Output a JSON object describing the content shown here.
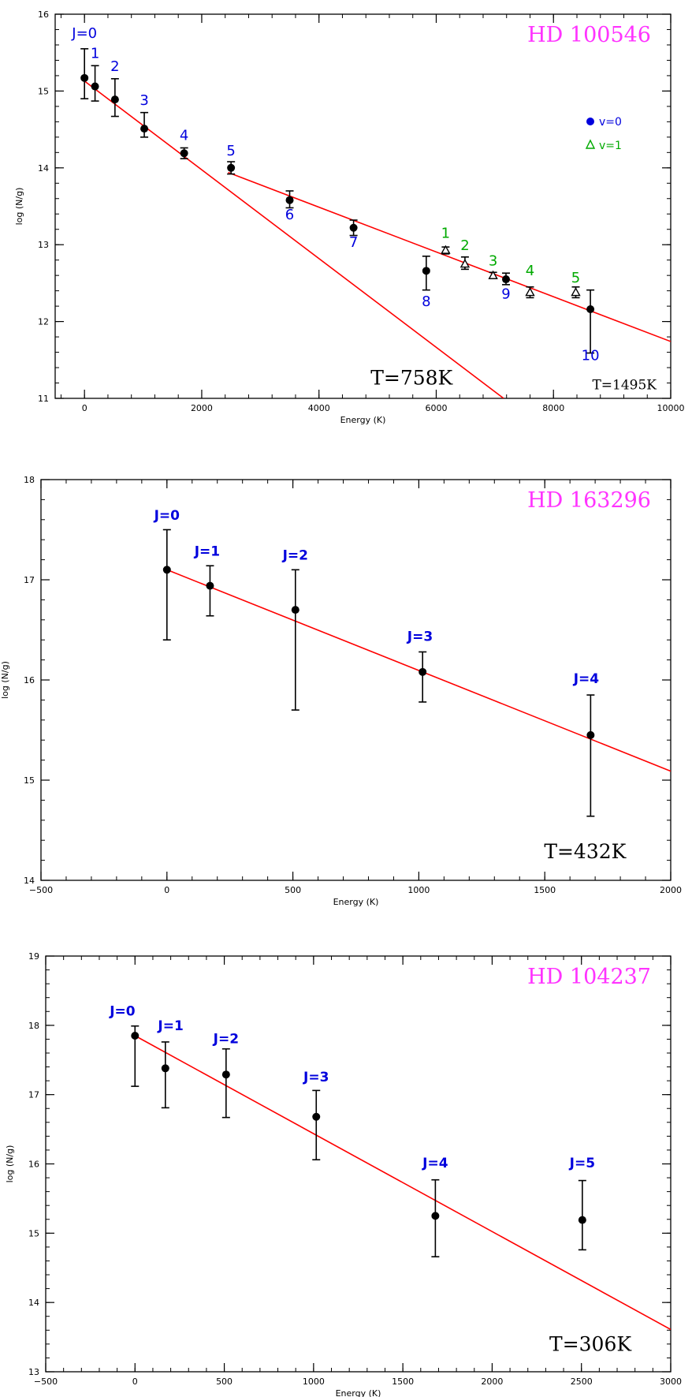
{
  "colors": {
    "fit_line": "#ff0000",
    "title": "#ff33ff",
    "v0_label": "#0000dd",
    "v1_label": "#00aa00",
    "marker": "#000000"
  },
  "chart_data": [
    {
      "type": "scatter",
      "title": "HD 100546",
      "xlabel": "Energy (K)",
      "ylabel": "log (N/g)",
      "xlim": [
        -500,
        10000
      ],
      "ylim": [
        11,
        16
      ],
      "xticks": [
        0,
        2000,
        4000,
        6000,
        8000,
        10000
      ],
      "yticks": [
        11,
        12,
        13,
        14,
        15,
        16
      ],
      "xtick_labels": [
        "0",
        "2000",
        "4000",
        "6000",
        "8000",
        "10000"
      ],
      "ytick_labels": [
        "11",
        "12",
        "13",
        "14",
        "15",
        "16"
      ],
      "x_minor_step": 400,
      "y_minor_step": 0.2,
      "grid": false,
      "legend_position": "right",
      "legend": [
        {
          "marker": "circle",
          "label": "v=0",
          "color": "#0000dd"
        },
        {
          "marker": "triangle",
          "label": "v=1",
          "color": "#00aa00"
        }
      ],
      "series": [
        {
          "name": "v=0",
          "marker": "circle",
          "label_color": "#0000dd",
          "points": [
            {
              "x": 0,
              "y": 15.17,
              "ylo": 14.9,
              "yhi": 15.55,
              "label": "J=0",
              "lx": 0,
              "ly": 15.69
            },
            {
              "x": 180,
              "y": 15.06,
              "ylo": 14.87,
              "yhi": 15.33,
              "label": "1",
              "lx": 180,
              "ly": 15.43
            },
            {
              "x": 520,
              "y": 14.89,
              "ylo": 14.67,
              "yhi": 15.16,
              "label": "2",
              "lx": 520,
              "ly": 15.26
            },
            {
              "x": 1020,
              "y": 14.51,
              "ylo": 14.4,
              "yhi": 14.72,
              "label": "3",
              "lx": 1020,
              "ly": 14.82
            },
            {
              "x": 1700,
              "y": 14.19,
              "ylo": 14.12,
              "yhi": 14.26,
              "label": "4",
              "lx": 1700,
              "ly": 14.36
            },
            {
              "x": 2500,
              "y": 14.0,
              "ylo": 13.92,
              "yhi": 14.08,
              "label": "5",
              "lx": 2500,
              "ly": 14.16
            },
            {
              "x": 3500,
              "y": 13.58,
              "ylo": 13.48,
              "yhi": 13.7,
              "label": "6",
              "lx": 3500,
              "ly": 13.33
            },
            {
              "x": 4590,
              "y": 13.22,
              "ylo": 13.12,
              "yhi": 13.32,
              "label": "7",
              "lx": 4590,
              "ly": 12.97
            },
            {
              "x": 5830,
              "y": 12.66,
              "ylo": 12.41,
              "yhi": 12.85,
              "label": "8",
              "lx": 5830,
              "ly": 12.2
            },
            {
              "x": 7190,
              "y": 12.55,
              "ylo": 12.48,
              "yhi": 12.63,
              "label": "9",
              "lx": 7190,
              "ly": 12.3
            },
            {
              "x": 8630,
              "y": 12.16,
              "ylo": 11.59,
              "yhi": 12.41,
              "label": "10",
              "lx": 8630,
              "ly": 11.5
            }
          ]
        },
        {
          "name": "v=1",
          "marker": "triangle",
          "label_color": "#00aa00",
          "points": [
            {
              "x": 6160,
              "y": 12.93,
              "ylo": 12.88,
              "yhi": 12.97,
              "label": "1",
              "lx": 6160,
              "ly": 13.09
            },
            {
              "x": 6490,
              "y": 12.75,
              "ylo": 12.68,
              "yhi": 12.84,
              "label": "2",
              "lx": 6490,
              "ly": 12.93
            },
            {
              "x": 6970,
              "y": 12.6,
              "ylo": 12.56,
              "yhi": 12.64,
              "label": "3",
              "lx": 6970,
              "ly": 12.73
            },
            {
              "x": 7600,
              "y": 12.38,
              "ylo": 12.31,
              "yhi": 12.45,
              "label": "4",
              "lx": 7600,
              "ly": 12.6
            },
            {
              "x": 8380,
              "y": 12.38,
              "ylo": 12.31,
              "yhi": 12.45,
              "label": "5",
              "lx": 8380,
              "ly": 12.51
            }
          ]
        }
      ],
      "fits": [
        {
          "x": [
            0,
            7150
          ],
          "y": [
            15.13,
            11.0
          ]
        },
        {
          "x": [
            2450,
            10000
          ],
          "y": [
            13.94,
            11.74
          ]
        }
      ],
      "annotations": [
        {
          "text": "T=758K",
          "x": 5580,
          "y": 11.18,
          "size": "large"
        },
        {
          "text": "T=1495K",
          "x": 9210,
          "y": 11.12,
          "size": "small"
        }
      ]
    },
    {
      "type": "scatter",
      "title": "HD 163296",
      "xlabel": "Energy (K)",
      "ylabel": "log (N/g)",
      "xlim": [
        -500,
        2000
      ],
      "ylim": [
        14,
        18
      ],
      "xticks": [
        -500,
        0,
        500,
        1000,
        1500,
        2000
      ],
      "yticks": [
        14,
        15,
        16,
        17,
        18
      ],
      "xtick_labels": [
        "−500",
        "0",
        "500",
        "1000",
        "1500",
        "2000"
      ],
      "ytick_labels": [
        "14",
        "15",
        "16",
        "17",
        "18"
      ],
      "x_minor_step": 100,
      "y_minor_step": 0.2,
      "grid": false,
      "legend": [],
      "series": [
        {
          "name": "",
          "marker": "circle",
          "label_color": "#0000dd",
          "bold_labels": true,
          "points": [
            {
              "x": 0,
              "y": 17.1,
              "ylo": 16.4,
              "yhi": 17.5,
              "label": "J=0",
              "lx": 0,
              "ly": 17.6
            },
            {
              "x": 171,
              "y": 16.94,
              "ylo": 16.64,
              "yhi": 17.14,
              "label": "J=1",
              "lx": 160,
              "ly": 17.24
            },
            {
              "x": 510,
              "y": 16.7,
              "ylo": 15.7,
              "yhi": 17.1,
              "label": "J=2",
              "lx": 510,
              "ly": 17.2
            },
            {
              "x": 1015,
              "y": 16.08,
              "ylo": 15.78,
              "yhi": 16.28,
              "label": "J=3",
              "lx": 1005,
              "ly": 16.39
            },
            {
              "x": 1682,
              "y": 15.45,
              "ylo": 14.64,
              "yhi": 15.85,
              "label": "J=4",
              "lx": 1665,
              "ly": 15.97
            }
          ]
        }
      ],
      "fits": [
        {
          "x": [
            0,
            2000
          ],
          "y": [
            17.1,
            15.09
          ]
        }
      ],
      "annotations": [
        {
          "text": "T=432K",
          "x": 1660,
          "y": 14.22,
          "size": "large"
        }
      ]
    },
    {
      "type": "scatter",
      "title": "HD 104237",
      "xlabel": "Energy (K)",
      "ylabel": "log (N/g)",
      "xlim": [
        -500,
        3000
      ],
      "ylim": [
        13,
        19
      ],
      "xticks": [
        -500,
        0,
        500,
        1000,
        1500,
        2000,
        2500,
        3000
      ],
      "yticks": [
        13,
        14,
        15,
        16,
        17,
        18,
        19
      ],
      "xtick_labels": [
        "−500",
        "0",
        "500",
        "1000",
        "1500",
        "2000",
        "2500",
        "3000"
      ],
      "ytick_labels": [
        "13",
        "14",
        "15",
        "16",
        "17",
        "18",
        "19"
      ],
      "x_minor_step": 100,
      "y_minor_step": 0.2,
      "grid": false,
      "legend": [],
      "series": [
        {
          "name": "",
          "marker": "circle",
          "label_color": "#0000dd",
          "bold_labels": true,
          "points": [
            {
              "x": 0,
              "y": 17.85,
              "ylo": 17.12,
              "yhi": 17.99,
              "label": "J=0",
              "lx": -70,
              "ly": 18.14
            },
            {
              "x": 170,
              "y": 17.38,
              "ylo": 16.81,
              "yhi": 17.76,
              "label": "J=1",
              "lx": 200,
              "ly": 17.93
            },
            {
              "x": 510,
              "y": 17.29,
              "ylo": 16.67,
              "yhi": 17.66,
              "label": "J=2",
              "lx": 510,
              "ly": 17.74
            },
            {
              "x": 1015,
              "y": 16.68,
              "ylo": 16.06,
              "yhi": 17.06,
              "label": "J=3",
              "lx": 1015,
              "ly": 17.19
            },
            {
              "x": 1682,
              "y": 15.25,
              "ylo": 14.66,
              "yhi": 15.77,
              "label": "J=4",
              "lx": 1682,
              "ly": 15.95
            },
            {
              "x": 2505,
              "y": 15.19,
              "ylo": 14.76,
              "yhi": 15.76,
              "label": "J=5",
              "lx": 2505,
              "ly": 15.95
            }
          ]
        }
      ],
      "fits": [
        {
          "x": [
            0,
            3000
          ],
          "y": [
            17.85,
            13.61
          ]
        }
      ],
      "annotations": [
        {
          "text": "T=306K",
          "x": 2550,
          "y": 13.3,
          "size": "large"
        }
      ]
    }
  ]
}
